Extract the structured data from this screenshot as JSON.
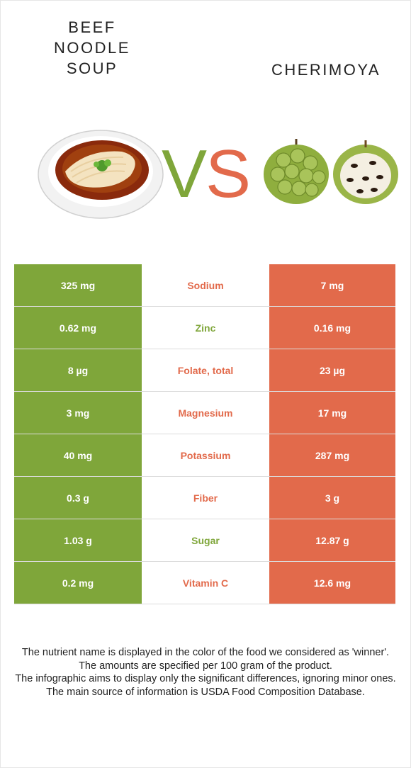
{
  "left_food": {
    "title_lines": [
      "BEEF",
      "NOODLE",
      "SOUP"
    ],
    "color": "#7fa63a"
  },
  "right_food": {
    "title": "CHERIMOYA",
    "color": "#e26a4b"
  },
  "vs": {
    "v": "V",
    "s": "S"
  },
  "rows": [
    {
      "nutrient": "Sodium",
      "left": "325 mg",
      "right": "7 mg",
      "winner": "right"
    },
    {
      "nutrient": "Zinc",
      "left": "0.62 mg",
      "right": "0.16 mg",
      "winner": "left"
    },
    {
      "nutrient": "Folate, total",
      "left": "8 µg",
      "right": "23 µg",
      "winner": "right"
    },
    {
      "nutrient": "Magnesium",
      "left": "3 mg",
      "right": "17 mg",
      "winner": "right"
    },
    {
      "nutrient": "Potassium",
      "left": "40 mg",
      "right": "287 mg",
      "winner": "right"
    },
    {
      "nutrient": "Fiber",
      "left": "0.3 g",
      "right": "3 g",
      "winner": "right"
    },
    {
      "nutrient": "Sugar",
      "left": "1.03 g",
      "right": "12.87 g",
      "winner": "left"
    },
    {
      "nutrient": "Vitamin C",
      "left": "0.2 mg",
      "right": "12.6 mg",
      "winner": "right"
    }
  ],
  "footer": [
    "The nutrient name is displayed in the color of the food we considered as 'winner'.",
    "The amounts are specified per 100 gram of the product.",
    "The infographic aims to display only the significant differences, ignoring minor ones.",
    "The main source of information is USDA Food Composition Database."
  ]
}
